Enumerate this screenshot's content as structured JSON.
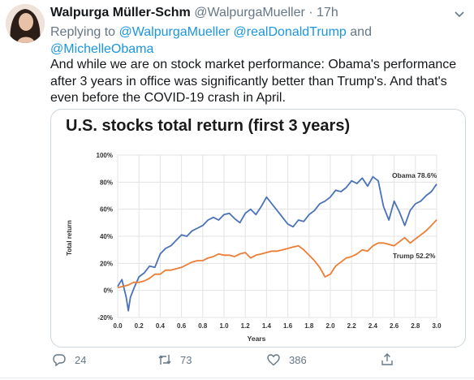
{
  "tweet": {
    "author_name": "Walpurga Müller-Schm",
    "author_handle": "@WalpurgaMueller",
    "separator": "·",
    "time": "17h",
    "reply_prefix": "Replying to",
    "reply_to": [
      "@WalpurgaMueller",
      "@realDonaldTrump"
    ],
    "reply_and": "and",
    "reply_last": "@MichelleObama",
    "text": "And while we are on stock market performance: Obama's performance after 3 years in office was significantly better than Trump's. And that's even before the COVID-19 crash in April.",
    "reply_count": "24",
    "retweet_count": "73",
    "like_count": "386",
    "icons": [
      "chevron-down-icon",
      "reply-icon",
      "retweet-icon",
      "like-icon",
      "share-icon"
    ],
    "colors": {
      "link": "#1b95e0",
      "muted": "#657786"
    }
  },
  "chart_data": {
    "type": "line",
    "title": "U.S. stocks total return (first 3 years)",
    "xlabel": "Years",
    "ylabel": "Total return",
    "xlim": [
      0,
      3
    ],
    "ylim": [
      -20,
      100
    ],
    "xticks": [
      "0.0",
      "0.2",
      "0.4",
      "0.6",
      "0.8",
      "1.0",
      "1.2",
      "1.4",
      "1.6",
      "1.8",
      "2.0",
      "2.2",
      "2.4",
      "2.6",
      "2.8",
      "3.0"
    ],
    "yticks": [
      "-20%",
      "0%",
      "20%",
      "40%",
      "60%",
      "80%",
      "100%"
    ],
    "grid": true,
    "series": [
      {
        "name": "Obama",
        "label": "Obama 78.6%",
        "color": "#4a72b8",
        "x": [
          0,
          0.04,
          0.08,
          0.1,
          0.12,
          0.16,
          0.2,
          0.25,
          0.3,
          0.35,
          0.4,
          0.45,
          0.5,
          0.55,
          0.6,
          0.65,
          0.7,
          0.75,
          0.8,
          0.85,
          0.9,
          0.95,
          1.0,
          1.05,
          1.1,
          1.15,
          1.2,
          1.25,
          1.3,
          1.35,
          1.4,
          1.45,
          1.5,
          1.55,
          1.6,
          1.65,
          1.7,
          1.75,
          1.8,
          1.85,
          1.9,
          1.95,
          2.0,
          2.05,
          2.1,
          2.15,
          2.2,
          2.25,
          2.3,
          2.35,
          2.4,
          2.45,
          2.5,
          2.55,
          2.6,
          2.65,
          2.7,
          2.75,
          2.8,
          2.85,
          2.9,
          2.95,
          3.0
        ],
        "y": [
          3,
          8,
          -5,
          -15,
          -5,
          3,
          10,
          13,
          18,
          17,
          27,
          31,
          33,
          37,
          41,
          40,
          44,
          46,
          48,
          52,
          54,
          52,
          56,
          57,
          53,
          50,
          57,
          60,
          56,
          62,
          69,
          64,
          59,
          54,
          49,
          47,
          52,
          51,
          56,
          59,
          64,
          66,
          69,
          74,
          73,
          76,
          81,
          79,
          83,
          77,
          84,
          81,
          62,
          52,
          66,
          58,
          48,
          59,
          64,
          66,
          70,
          73,
          78.6
        ]
      },
      {
        "name": "Trump",
        "label": "Trump 52.2%",
        "color": "#ec7d34",
        "x": [
          0,
          0.05,
          0.1,
          0.15,
          0.2,
          0.25,
          0.3,
          0.35,
          0.4,
          0.45,
          0.5,
          0.55,
          0.6,
          0.65,
          0.7,
          0.75,
          0.8,
          0.85,
          0.9,
          0.95,
          1.0,
          1.05,
          1.1,
          1.15,
          1.2,
          1.25,
          1.3,
          1.35,
          1.4,
          1.45,
          1.5,
          1.55,
          1.6,
          1.65,
          1.7,
          1.75,
          1.8,
          1.85,
          1.9,
          1.95,
          2.0,
          2.05,
          2.1,
          2.15,
          2.2,
          2.25,
          2.3,
          2.35,
          2.4,
          2.45,
          2.5,
          2.55,
          2.6,
          2.65,
          2.7,
          2.75,
          2.8,
          2.85,
          2.9,
          2.95,
          3.0
        ],
        "y": [
          2,
          3,
          4,
          6,
          6,
          7,
          9,
          12,
          12,
          15,
          15,
          16,
          17,
          19,
          21,
          22,
          22,
          24,
          25,
          27,
          26,
          26,
          25,
          27,
          28,
          24,
          26,
          27,
          28,
          29,
          29,
          30,
          31,
          32,
          33,
          30,
          26,
          22,
          17,
          10,
          12,
          18,
          21,
          24,
          25,
          27,
          30,
          29,
          33,
          35,
          35,
          34,
          33,
          36,
          39,
          35,
          38,
          41,
          44,
          48,
          52.2
        ]
      }
    ]
  }
}
